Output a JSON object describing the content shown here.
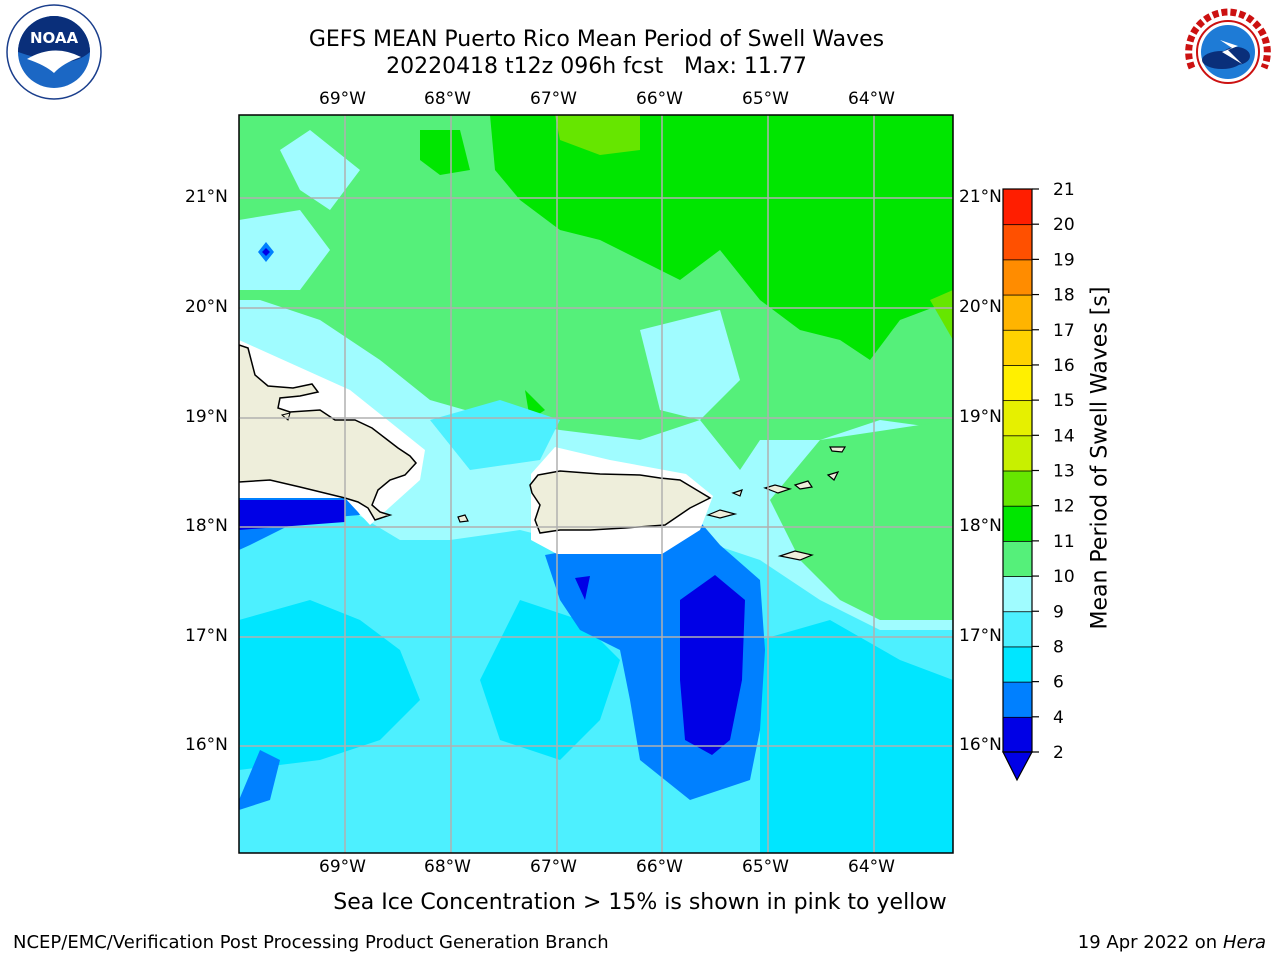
{
  "title": {
    "line1": "GEFS MEAN Puerto Rico Mean Period of Swell Waves",
    "line2": "20220418 t12z 096h fcst   Max: 11.77"
  },
  "axes": {
    "lon_labels": [
      "69°W",
      "68°W",
      "67°W",
      "66°W",
      "65°W",
      "64°W"
    ],
    "lat_labels": [
      "21°N",
      "20°N",
      "19°N",
      "18°N",
      "17°N",
      "16°N"
    ]
  },
  "colorbar": {
    "label": "Mean Period of Swell Waves [s]",
    "ticks": [
      "2",
      "4",
      "6",
      "8",
      "9",
      "10",
      "11",
      "12",
      "13",
      "14",
      "15",
      "16",
      "17",
      "18",
      "19",
      "20",
      "21"
    ],
    "colors": [
      "#0000e6",
      "#0080ff",
      "#00e6ff",
      "#4df0ff",
      "#a0fcff",
      "#55f07a",
      "#00e600",
      "#66e600",
      "#c8f000",
      "#e6f000",
      "#fff000",
      "#ffd200",
      "#ffb400",
      "#ff8c00",
      "#ff5000",
      "#ff1e00",
      "#ff0000"
    ]
  },
  "note": "Sea Ice Concentration > 15% is shown in pink to yellow",
  "credit": {
    "left": "NCEP/EMC/Verification Post Processing Product Generation Branch",
    "right_date": "19 Apr 2022 on",
    "right_host": "Hera"
  },
  "logos": {
    "left": "noaa-logo",
    "right": "nws-logo",
    "right_text": "NATIONAL WEATHER SERVICE"
  }
}
